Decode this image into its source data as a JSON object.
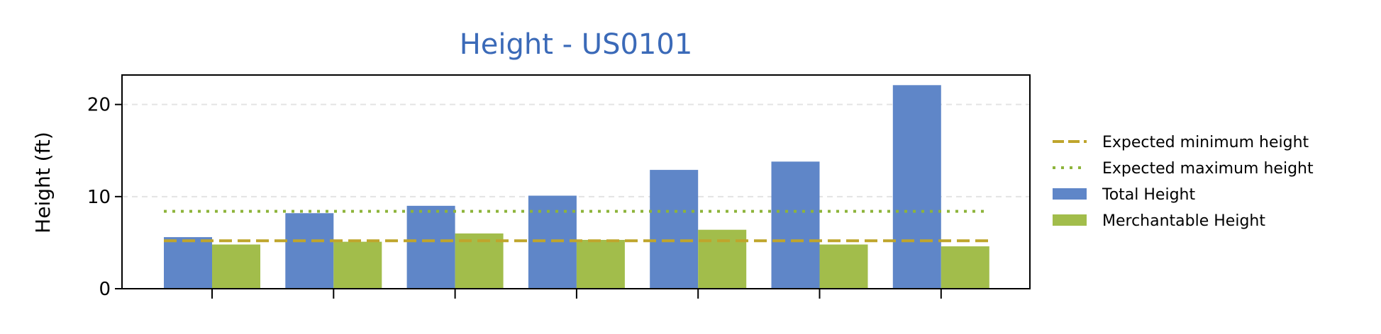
{
  "chart_data": {
    "type": "bar",
    "title": "Height - US0101",
    "xlabel": "",
    "ylabel": "Height (ft)",
    "ylim": [
      0,
      23.2
    ],
    "yticks": [
      0,
      10,
      20
    ],
    "grid": "horizontal",
    "categories": [
      "",
      "",
      "",
      "",
      "",
      "",
      ""
    ],
    "series": [
      {
        "name": "Total Height",
        "values": [
          5.6,
          8.2,
          9.0,
          10.1,
          12.9,
          13.8,
          22.1
        ]
      },
      {
        "name": "Merchantable Height",
        "values": [
          4.8,
          5.1,
          6.0,
          5.3,
          6.4,
          4.8,
          4.6
        ]
      }
    ],
    "reference_lines": [
      {
        "name": "Expected minimum height",
        "value": 5.2,
        "style": "dashed"
      },
      {
        "name": "Expected maximum height",
        "value": 8.4,
        "style": "dotted"
      }
    ],
    "legend_position": "right"
  },
  "colors": {
    "title": "#3b6ab8",
    "total": "#5f86c8",
    "merch": "#a2bd4b",
    "min_line": "#bfa52c",
    "max_line": "#8db43a",
    "grid": "#e3e3e3"
  }
}
